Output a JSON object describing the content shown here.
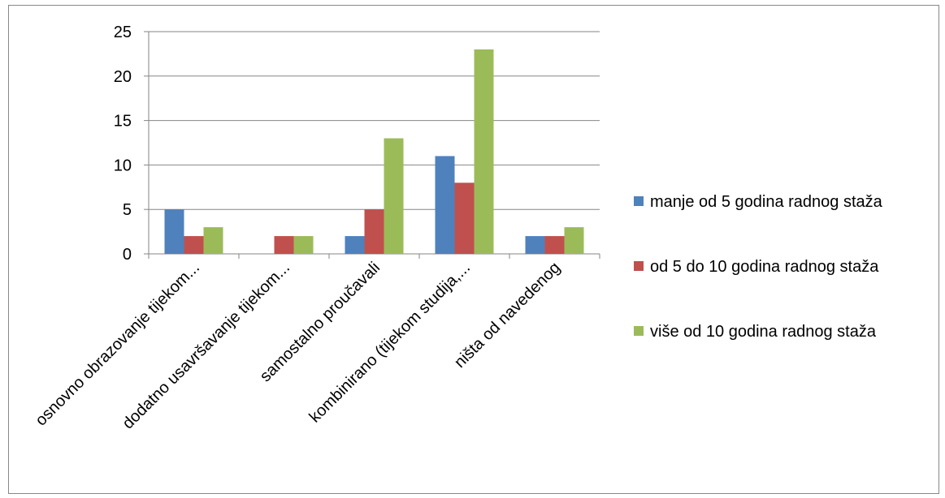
{
  "chart_data": {
    "type": "bar",
    "title": "",
    "xlabel": "",
    "ylabel": "",
    "ylim": [
      0,
      25
    ],
    "yticks": [
      0,
      5,
      10,
      15,
      20,
      25
    ],
    "grid": true,
    "legend_position": "right",
    "categories": [
      "osnovno obrazovanje tijekom...",
      "dodatno usavršavanje tijekom...",
      "samostalno proučavali",
      "kombinirano (tijekom studija,...",
      "ništa od navedenog"
    ],
    "series": [
      {
        "name": "manje od 5 godina radnog staža",
        "color": "#4F81BD",
        "values": [
          5,
          0,
          2,
          11,
          2
        ]
      },
      {
        "name": "od 5 do 10 godina radnog staža",
        "color": "#C0504D",
        "values": [
          2,
          2,
          5,
          8,
          2
        ]
      },
      {
        "name": "više od 10 godina radnog staža",
        "color": "#9BBB59",
        "values": [
          3,
          2,
          13,
          23,
          3
        ]
      }
    ]
  }
}
